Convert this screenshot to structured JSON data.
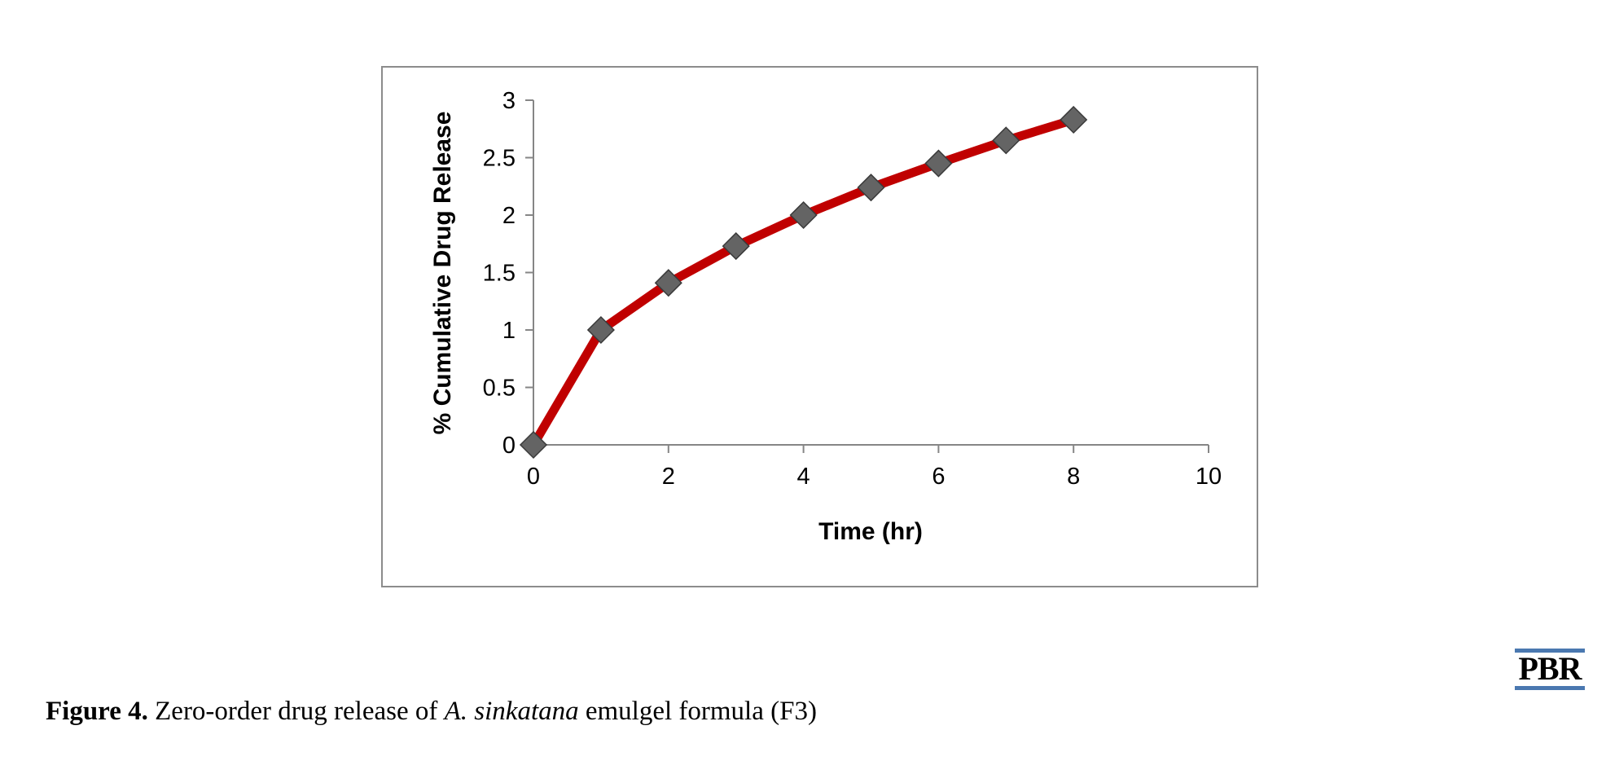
{
  "chart_data": {
    "type": "line",
    "title": "",
    "xlabel": "Time (hr)",
    "ylabel": "% Cumulative Drug Release",
    "xlim": [
      0,
      10
    ],
    "ylim": [
      0,
      3
    ],
    "xticks": [
      0,
      2,
      4,
      6,
      8,
      10
    ],
    "xtick_labels": [
      "0",
      "2",
      "4",
      "6",
      "8",
      "10"
    ],
    "yticks": [
      0,
      0.5,
      1,
      1.5,
      2,
      2.5,
      3
    ],
    "ytick_labels": [
      "0",
      "0.5",
      "1",
      "1.5",
      "2",
      "2.5",
      "3"
    ],
    "grid": false,
    "legend": "none",
    "series": [
      {
        "x": [
          0,
          1,
          2,
          3,
          4,
          5,
          6,
          7,
          8
        ],
        "y": [
          0,
          1.0,
          1.41,
          1.73,
          2.0,
          2.24,
          2.45,
          2.65,
          2.83
        ],
        "line_color": "#c00000",
        "marker": "diamond",
        "marker_color": "#646464"
      }
    ]
  },
  "caption": {
    "label": "Figure 4.",
    "text_before": " Zero-order drug release of ",
    "species": "A. sinkatana",
    "text_after": " emulgel formula (F3)"
  },
  "logo": {
    "text": "PBR",
    "accent_color": "#4a78b0"
  }
}
